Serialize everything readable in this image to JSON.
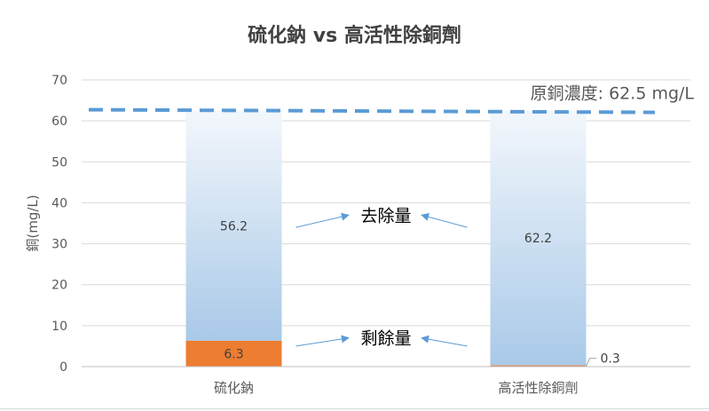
{
  "chart_data": {
    "type": "bar",
    "title": "硫化鈉 vs 高活性除銅劑",
    "xlabel": "",
    "ylabel": "銅(mg/L)",
    "ylim": [
      0,
      70
    ],
    "yticks": [
      0,
      10,
      20,
      30,
      40,
      50,
      60,
      70
    ],
    "categories": [
      "硫化鈉",
      "高活性除銅劑"
    ],
    "series": [
      {
        "name": "剩餘量",
        "values": [
          6.3,
          0.3
        ],
        "labels": [
          "6.3",
          "0.3"
        ],
        "color": "#ed7d31"
      },
      {
        "name": "去除量",
        "values": [
          56.2,
          62.2
        ],
        "labels": [
          "56.2",
          "62.2"
        ],
        "color": "#9dc3e6"
      }
    ],
    "reference_line": {
      "value": 62.5,
      "label": "原銅濃度: 62.5 mg/L",
      "color": "#5b9bd5",
      "style": "dashed"
    },
    "annotations": [
      {
        "text": "去除量",
        "points_to": "removed"
      },
      {
        "text": "剩餘量",
        "points_to": "remaining"
      }
    ],
    "grid": true,
    "legend": "none"
  }
}
